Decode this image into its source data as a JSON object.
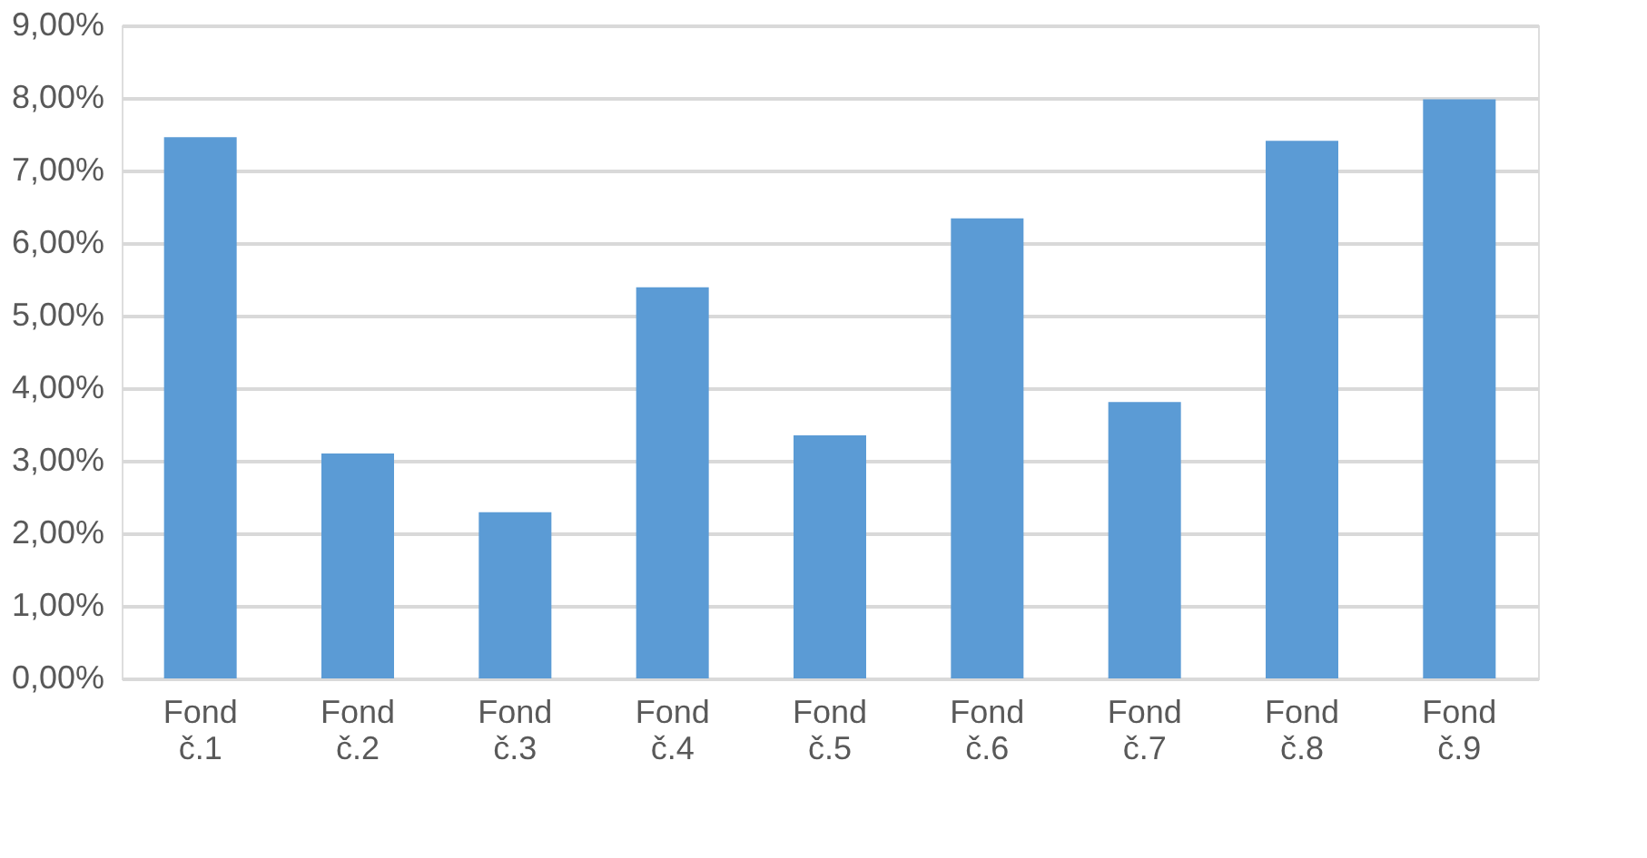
{
  "chart_data": {
    "type": "bar",
    "categories": [
      "Fond č.1",
      "Fond č.2",
      "Fond č.3",
      "Fond č.4",
      "Fond č.5",
      "Fond č.6",
      "Fond č.7",
      "Fond č.8",
      "Fond č.9"
    ],
    "values": [
      7.46,
      3.1,
      2.29,
      5.39,
      3.35,
      6.34,
      3.81,
      7.41,
      7.98
    ],
    "color": "#5b9bd5",
    "ylim": [
      0,
      9
    ],
    "yticks": [
      {
        "value": 0,
        "label": "0,00%"
      },
      {
        "value": 1,
        "label": "1,00%"
      },
      {
        "value": 2,
        "label": "2,00%"
      },
      {
        "value": 3,
        "label": "3,00%"
      },
      {
        "value": 4,
        "label": "4,00%"
      },
      {
        "value": 5,
        "label": "5,00%"
      },
      {
        "value": 6,
        "label": "6,00%"
      },
      {
        "value": 7,
        "label": "7,00%"
      },
      {
        "value": 8,
        "label": "8,00%"
      },
      {
        "value": 9,
        "label": "9,00%"
      }
    ],
    "grid": "y"
  }
}
